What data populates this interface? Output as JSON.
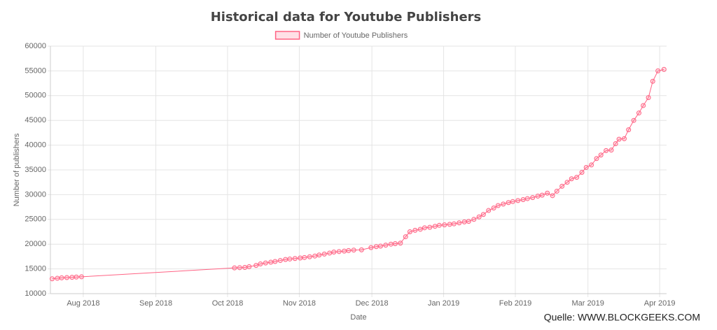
{
  "chart_data": {
    "type": "line",
    "title": "Historical data for Youtube Publishers",
    "x_label": "Date",
    "y_label": "Number of publishers",
    "annotation": "Quelle: WWW.BLOCKGEEKS.COM",
    "legend_position": "top",
    "grid": true,
    "xlim": [
      2018.545,
      2019.258
    ],
    "xticks": [
      {
        "value": 2018.583,
        "label": "Aug 2018"
      },
      {
        "value": 2018.667,
        "label": "Sep 2018"
      },
      {
        "value": 2018.75,
        "label": "Oct 2018"
      },
      {
        "value": 2018.833,
        "label": "Nov 2018"
      },
      {
        "value": 2018.917,
        "label": "Dec 2018"
      },
      {
        "value": 2019,
        "label": "Jan 2019"
      },
      {
        "value": 2019.083,
        "label": "Feb 2019"
      },
      {
        "value": 2019.167,
        "label": "Mar 2019"
      },
      {
        "value": 2019.25,
        "label": "Apr 2019"
      }
    ],
    "ylim": [
      10000,
      60000
    ],
    "yticks": [
      10000,
      15000,
      20000,
      25000,
      30000,
      35000,
      40000,
      45000,
      50000,
      55000,
      60000
    ],
    "x": [
      2018.547,
      2018.553,
      2018.558,
      2018.564,
      2018.57,
      2018.575,
      2018.581,
      2018.758,
      2018.764,
      2018.77,
      2018.775,
      2018.783,
      2018.788,
      2018.794,
      2018.8,
      2018.805,
      2018.811,
      2018.817,
      2018.822,
      2018.828,
      2018.834,
      2018.839,
      2018.845,
      2018.851,
      2018.856,
      2018.862,
      2018.868,
      2018.873,
      2018.879,
      2018.885,
      2018.89,
      2018.896,
      2018.905,
      2018.916,
      2018.922,
      2018.927,
      2018.933,
      2018.939,
      2018.944,
      2018.95,
      2018.956,
      2018.961,
      2018.967,
      2018.973,
      2018.978,
      2018.984,
      2018.99,
      2018.995,
      2019.001,
      2019.007,
      2019.012,
      2019.018,
      2019.024,
      2019.029,
      2019.035,
      2019.041,
      2019.046,
      2019.052,
      2019.058,
      2019.063,
      2019.069,
      2019.075,
      2019.08,
      2019.086,
      2019.092,
      2019.097,
      2019.103,
      2019.109,
      2019.114,
      2019.12,
      2019.126,
      2019.131,
      2019.137,
      2019.143,
      2019.148,
      2019.154,
      2019.16,
      2019.165,
      2019.171,
      2019.177,
      2019.182,
      2019.188,
      2019.194,
      2019.199,
      2019.203,
      2019.209,
      2019.214,
      2019.22,
      2019.226,
      2019.231,
      2019.237,
      2019.242,
      2019.248,
      2019.255
    ],
    "series": [
      {
        "name": "Number of Youtube Publishers",
        "color": "#ff6384",
        "values": [
          13000,
          13100,
          13200,
          13250,
          13300,
          13350,
          13400,
          15200,
          15250,
          15300,
          15450,
          15700,
          16000,
          16200,
          16350,
          16500,
          16700,
          16900,
          17000,
          17100,
          17200,
          17300,
          17450,
          17600,
          17800,
          18000,
          18200,
          18400,
          18500,
          18600,
          18700,
          18800,
          18850,
          19300,
          19500,
          19600,
          19800,
          20000,
          20100,
          20200,
          21500,
          22500,
          22800,
          23000,
          23300,
          23400,
          23600,
          23800,
          23900,
          24000,
          24100,
          24300,
          24500,
          24600,
          25000,
          25500,
          26000,
          26800,
          27300,
          27800,
          28100,
          28400,
          28600,
          28800,
          29000,
          29200,
          29400,
          29700,
          29900,
          30300,
          29800,
          30700,
          31700,
          32500,
          33200,
          33500,
          34500,
          35500,
          36000,
          37300,
          38000,
          38900,
          39000,
          40300,
          41200,
          41300,
          43100,
          45000,
          46500,
          48000,
          49600,
          52900,
          55000,
          55300
        ]
      }
    ]
  }
}
